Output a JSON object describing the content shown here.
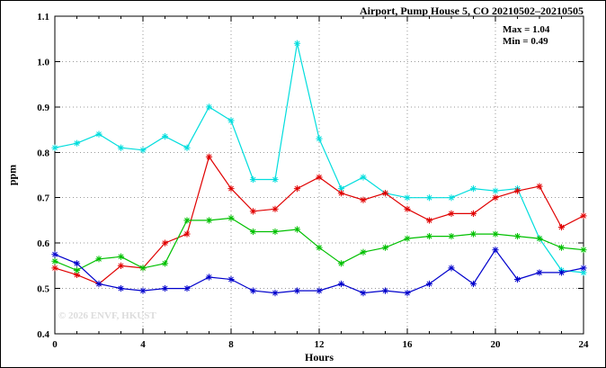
{
  "title": "Airport, Pump House 5, CO 20210502–20210505",
  "annotation": {
    "max": "Max = 1.04",
    "min": "Min = 0.49"
  },
  "watermark": "© 2026 ENVF, HKUST",
  "chart_data": {
    "type": "line",
    "title": "Airport, Pump House 5, CO 20210502–20210505",
    "xlabel": "Hours",
    "ylabel": "ppm",
    "xlim": [
      0,
      24
    ],
    "ylim": [
      0.4,
      1.1
    ],
    "xticks": [
      0,
      4,
      8,
      12,
      16,
      20,
      24
    ],
    "yticks": [
      0.4,
      0.5,
      0.6,
      0.7,
      0.8,
      0.9,
      1.0,
      1.1
    ],
    "grid": true,
    "legend_position": "none",
    "marker": "asterisk",
    "annotations": [
      "Max = 1.04",
      "Min = 0.49"
    ],
    "x": [
      0,
      1,
      2,
      3,
      4,
      5,
      6,
      7,
      8,
      9,
      10,
      11,
      12,
      13,
      14,
      15,
      16,
      17,
      18,
      19,
      20,
      21,
      22,
      23,
      24
    ],
    "series": [
      {
        "name": "series-cyan",
        "color": "#00dddd",
        "values": [
          0.81,
          0.82,
          0.84,
          0.81,
          0.805,
          0.835,
          0.81,
          0.9,
          0.87,
          0.74,
          0.74,
          1.04,
          0.83,
          0.72,
          0.745,
          0.71,
          0.7,
          0.7,
          0.7,
          0.72,
          0.715,
          0.72,
          0.61,
          0.54,
          0.535
        ]
      },
      {
        "name": "series-red",
        "color": "#e00000",
        "values": [
          0.545,
          0.53,
          0.51,
          0.55,
          0.545,
          0.6,
          0.62,
          0.79,
          0.72,
          0.67,
          0.675,
          0.72,
          0.745,
          0.71,
          0.695,
          0.71,
          0.675,
          0.65,
          0.665,
          0.665,
          0.7,
          0.715,
          0.725,
          0.635,
          0.66
        ]
      },
      {
        "name": "series-green",
        "color": "#00c000",
        "values": [
          0.56,
          0.54,
          0.565,
          0.57,
          0.545,
          0.555,
          0.65,
          0.65,
          0.655,
          0.625,
          0.625,
          0.63,
          0.59,
          0.555,
          0.58,
          0.59,
          0.61,
          0.615,
          0.615,
          0.62,
          0.62,
          0.615,
          0.61,
          0.59,
          0.585
        ]
      },
      {
        "name": "series-blue",
        "color": "#0000cc",
        "values": [
          0.575,
          0.555,
          0.51,
          0.5,
          0.495,
          0.5,
          0.5,
          0.525,
          0.52,
          0.495,
          0.49,
          0.495,
          0.495,
          0.51,
          0.49,
          0.495,
          0.49,
          0.51,
          0.545,
          0.51,
          0.585,
          0.52,
          0.535,
          0.535,
          0.545
        ]
      }
    ]
  }
}
